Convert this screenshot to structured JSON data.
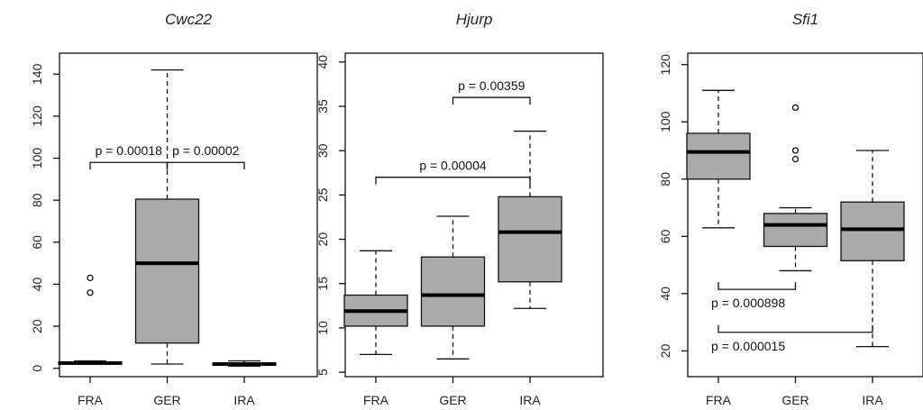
{
  "chart_data": [
    {
      "type": "box",
      "title": "Cwc22",
      "categories": [
        "FRA",
        "GER",
        "IRA"
      ],
      "ylim": [
        -4,
        150
      ],
      "yticks": [
        0,
        20,
        40,
        60,
        80,
        100,
        120,
        140
      ],
      "boxes": [
        {
          "category": "FRA",
          "min": 2,
          "q1": 2,
          "median": 2.5,
          "q3": 3,
          "max": 3.5,
          "outliers": [
            36,
            43
          ]
        },
        {
          "category": "GER",
          "min": 2,
          "q1": 12,
          "median": 50,
          "q3": 80.5,
          "max": 142,
          "outliers": []
        },
        {
          "category": "IRA",
          "min": 1,
          "q1": 1.5,
          "median": 2,
          "q3": 2.5,
          "max": 3.5,
          "outliers": []
        }
      ],
      "annotations": [
        {
          "from": "FRA",
          "to": "GER",
          "y": 98,
          "label": "p = 0.00018"
        },
        {
          "from": "GER",
          "to": "IRA",
          "y": 98,
          "label": "p = 0.00002"
        }
      ]
    },
    {
      "type": "box",
      "title": "Hjurp",
      "categories": [
        "FRA",
        "GER",
        "IRA"
      ],
      "ylim": [
        4.5,
        41
      ],
      "yticks": [
        5,
        10,
        15,
        20,
        25,
        30,
        35,
        40
      ],
      "boxes": [
        {
          "category": "FRA",
          "min": 7,
          "q1": 10.2,
          "median": 11.9,
          "q3": 13.7,
          "max": 18.7,
          "outliers": []
        },
        {
          "category": "GER",
          "min": 6.5,
          "q1": 10.2,
          "median": 13.7,
          "q3": 18,
          "max": 22.6,
          "outliers": []
        },
        {
          "category": "IRA",
          "min": 12.2,
          "q1": 15.2,
          "median": 20.8,
          "q3": 24.8,
          "max": 32.2,
          "outliers": []
        }
      ],
      "annotations": [
        {
          "from": "FRA",
          "to": "IRA",
          "y": 27,
          "label": "p = 0.00004"
        },
        {
          "from": "GER",
          "to": "IRA",
          "y": 36,
          "label": "p = 0.00359"
        }
      ]
    },
    {
      "type": "box",
      "title": "Sfi1",
      "categories": [
        "FRA",
        "GER",
        "IRA"
      ],
      "ylim": [
        11,
        124
      ],
      "yticks": [
        20,
        40,
        60,
        80,
        100,
        120
      ],
      "boxes": [
        {
          "category": "FRA",
          "min": 63,
          "q1": 80,
          "median": 89.5,
          "q3": 96,
          "max": 111,
          "outliers": []
        },
        {
          "category": "GER",
          "min": 48,
          "q1": 56.5,
          "median": 64,
          "q3": 68,
          "max": 70,
          "outliers": [
            87,
            90,
            105
          ]
        },
        {
          "category": "IRA",
          "min": 21.5,
          "q1": 51.5,
          "median": 62.5,
          "q3": 72,
          "max": 90,
          "outliers": []
        }
      ],
      "annotations": [
        {
          "from": "FRA",
          "to": "GER",
          "y": 41.5,
          "label": "p = 0.000898",
          "below": true
        },
        {
          "from": "FRA",
          "to": "IRA",
          "y": 26.5,
          "label": "p = 0.000015",
          "below": true
        }
      ]
    }
  ]
}
